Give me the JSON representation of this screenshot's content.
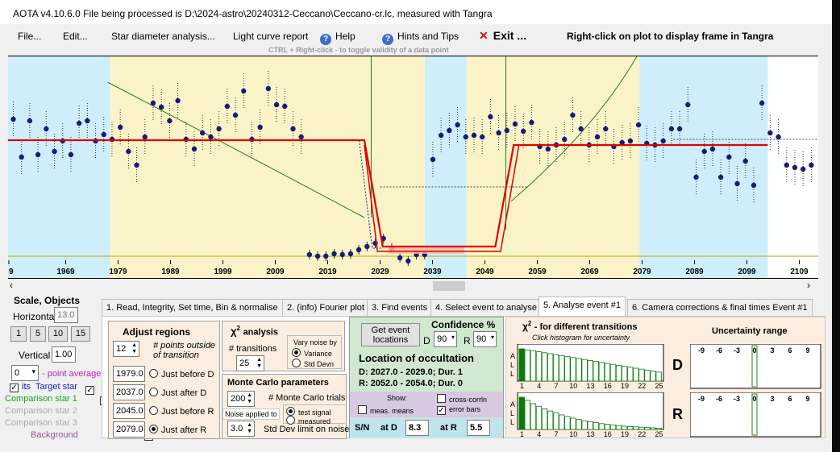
{
  "window": {
    "title": "AOTA v4.10.6.0    File being processed is D:\\2024-astro\\20240312-Ceccano\\Ceccano-cr.lc, measured with Tangra"
  },
  "menu": {
    "file": "File...",
    "edit": "Edit...",
    "star_diameter": "Star diameter analysis...",
    "light_curve_report": "Light curve report",
    "help": "Help",
    "hints": "Hints and Tips",
    "exit": "Exit ...",
    "right_click_note": "Right-click on plot to display frame in Tangra",
    "exit_color": "#d01010",
    "help_icon": "question-circle-icon",
    "close_icon": "red-x-icon"
  },
  "plot": {
    "ctrl_hint": "CTRL + Right-click  -  to toggle validity of a data point",
    "tick_labels": [
      "9",
      "1969",
      "1979",
      "1989",
      "1999",
      "2009",
      "2019",
      "2029",
      "2039",
      "2049",
      "2059",
      "2069",
      "2079",
      "2089",
      "2099",
      "2109"
    ],
    "x_start": 1959,
    "x_step": 10,
    "colors": {
      "region": "#faf3c8",
      "baseline": "#cfeefc",
      "fit": "#e00000",
      "points": "#1a1a7a",
      "chi": "#2a7a1a",
      "event_band": "#f3b8a0",
      "cutoff": "#b8a800"
    }
  },
  "left_panel": {
    "scale_objects": "Scale,  Objects",
    "horizontal": "Horizontal",
    "horizontal_value": "13.0",
    "scale_buttons": [
      "1",
      "5",
      "10",
      "15"
    ],
    "vertical": "Vertical",
    "vertical_value": "1.00",
    "point_average_value": "0",
    "point_average": "- point average",
    "target_prefix": "its",
    "target_star": "Target star",
    "comparison1": "Comparison star 1",
    "comparison2": "Comparison star 2",
    "comparison3": "Comparison star 3",
    "background": "Background",
    "target_color": "#1a1acc",
    "comparison1_color": "#1aa01a"
  },
  "tabs": [
    "1. Read, Integrity, Set time, Bin & normalise",
    "2. (info)  Fourier plot",
    "3. Find events",
    "4. Select event to analyse",
    "5. Analyse event #1",
    "6. Camera corrections & final times Event #1"
  ],
  "adjust": {
    "title": "Adjust regions",
    "points_value": "12",
    "points_label": "# points outside of transition",
    "rows": [
      {
        "value": "1979.0",
        "label": "Just before D"
      },
      {
        "value": "2037.0",
        "label": "Just after D"
      },
      {
        "value": "2045.0",
        "label": "Just before R"
      },
      {
        "value": "2079.0",
        "label": "Just after R"
      }
    ]
  },
  "chi_analysis": {
    "title": "analysis",
    "symbol": "χ",
    "superscript": "2",
    "transitions_label": "# transitions",
    "transitions_value": "25",
    "vary_noise": "Vary noise by",
    "variance": "Variance",
    "std_devn": "Std Devn"
  },
  "monte_carlo": {
    "title": "Monte Carlo parameters",
    "trials_value": "200",
    "trials_label": "# Monte Carlo trials",
    "noise_applied": "Noise applied to",
    "test_signal": "test signal",
    "measured": "measured",
    "std_limit_value": "3.0",
    "std_limit_label": "Std Dev limit on noise"
  },
  "event": {
    "get_locations": "Get event locations",
    "confidence": "Confidence %",
    "d_label": "D",
    "d_value": "90",
    "r_label": "R",
    "r_value": "90",
    "location_title": "Location of occultation",
    "d_line": "D: 2027.0 - 2029.0; Dur. 1",
    "r_line": "R: 2052.0 - 2054.0; Dur. 0",
    "show": "Show:",
    "cross_corrln": "cross-corrln",
    "meas_means": "meas. means",
    "error_bars": "error bars",
    "sn": "S/N",
    "at_d": "at D",
    "at_d_value": "8.3",
    "at_r": "at R",
    "at_r_value": "5.5",
    "bg_color": "#d0e8d0",
    "show_bg": "#d8c8e0",
    "sn_bg": "#c0e4ec"
  },
  "chi_transitions": {
    "title": "- for different transitions",
    "symbol": "χ",
    "superscript": "2",
    "subtitle": "Click histogram for uncertainty",
    "ticks": [
      "1",
      "4",
      "7",
      "10",
      "13",
      "16",
      "19",
      "22",
      "25"
    ],
    "axis_letters": [
      "A",
      "L",
      "L"
    ],
    "d_label": "D",
    "r_label": "R",
    "d_heights": [
      1.0,
      0.97,
      0.94,
      0.91,
      0.88,
      0.85,
      0.82,
      0.79,
      0.76,
      0.73,
      0.7,
      0.67,
      0.64,
      0.61,
      0.58,
      0.55,
      0.52,
      0.49,
      0.46,
      0.43,
      0.4,
      0.37,
      0.34,
      0.31,
      0.28
    ],
    "r_heights": [
      1.0,
      0.9,
      0.8,
      0.72,
      0.64,
      0.57,
      0.51,
      0.45,
      0.4,
      0.35,
      0.31,
      0.27,
      0.24,
      0.21,
      0.18,
      0.16,
      0.14,
      0.12,
      0.1,
      0.09,
      0.08,
      0.07,
      0.06,
      0.05,
      0.04
    ]
  },
  "uncertainty": {
    "title": "Uncertainty range",
    "ticks": [
      "-9",
      "-6",
      "-3",
      "0",
      "3",
      "6",
      "9"
    ]
  }
}
